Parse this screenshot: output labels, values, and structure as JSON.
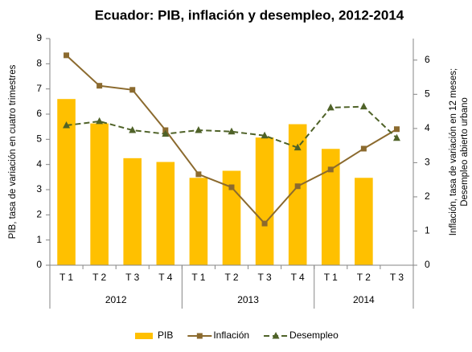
{
  "chart_data": {
    "type": "combo",
    "title": "Ecuador: PIB, inflación y desempleo, 2012-2014",
    "y_label": "PIB, tasa de variación en cuatro trimestres",
    "y2_label": [
      "Inflación, tasa de variación en 12 meses;",
      "Desempleo abierto urbano"
    ],
    "categories": [
      "T 1",
      "T 2",
      "T 3",
      "T 4",
      "T 1",
      "T 2",
      "T 3",
      "T 4",
      "T 1",
      "T 2",
      "T 3"
    ],
    "groups": [
      {
        "label": "2012",
        "span": 4
      },
      {
        "label": "2013",
        "span": 4
      },
      {
        "label": "2014",
        "span": 3
      }
    ],
    "series": [
      {
        "name": "PIB",
        "type": "bar",
        "color": "#ffc000",
        "values": [
          6.6,
          5.63,
          4.25,
          4.1,
          3.47,
          3.75,
          5.07,
          5.6,
          4.62,
          3.47,
          null
        ]
      },
      {
        "name": "Inflación",
        "type": "line",
        "axis": "y2",
        "color": "#8b6a2e",
        "marker": "square",
        "dash": false,
        "values": [
          6.14,
          5.25,
          5.13,
          3.95,
          2.66,
          2.28,
          1.22,
          2.31,
          2.8,
          3.41,
          3.98
        ]
      },
      {
        "name": "Desempleo",
        "type": "line",
        "axis": "y2",
        "color": "#4f6228",
        "marker": "triangle",
        "dash": true,
        "values": [
          4.09,
          4.21,
          3.95,
          3.84,
          3.95,
          3.91,
          3.79,
          3.44,
          4.61,
          4.64,
          3.72
        ]
      }
    ],
    "ylim": [
      0,
      9
    ],
    "yticks": [
      0,
      1,
      2,
      3,
      4,
      5,
      6,
      7,
      8,
      9
    ],
    "y2lim": [
      0,
      6.63
    ],
    "y2ticks": [
      0,
      1,
      2,
      3,
      4,
      5,
      6
    ],
    "legend": "bottom"
  }
}
